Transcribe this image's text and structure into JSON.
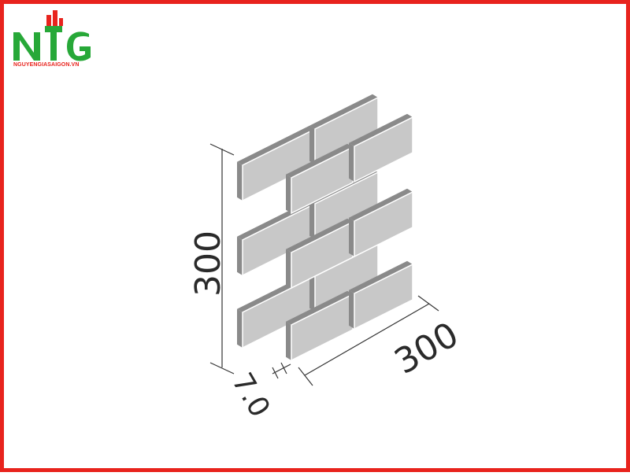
{
  "brand": {
    "logo_letters": "NTG",
    "site": "NGUYENGIASAIGON.VN",
    "color_green": "#27a838",
    "color_red": "#e8231d"
  },
  "colors": {
    "frame": "#e8231d",
    "tile_face": "#c8c8c8",
    "tile_edge": "#8a8a8a",
    "line": "#333333"
  },
  "dimensions": {
    "height": "300",
    "width": "300",
    "thickness": "7.0"
  }
}
